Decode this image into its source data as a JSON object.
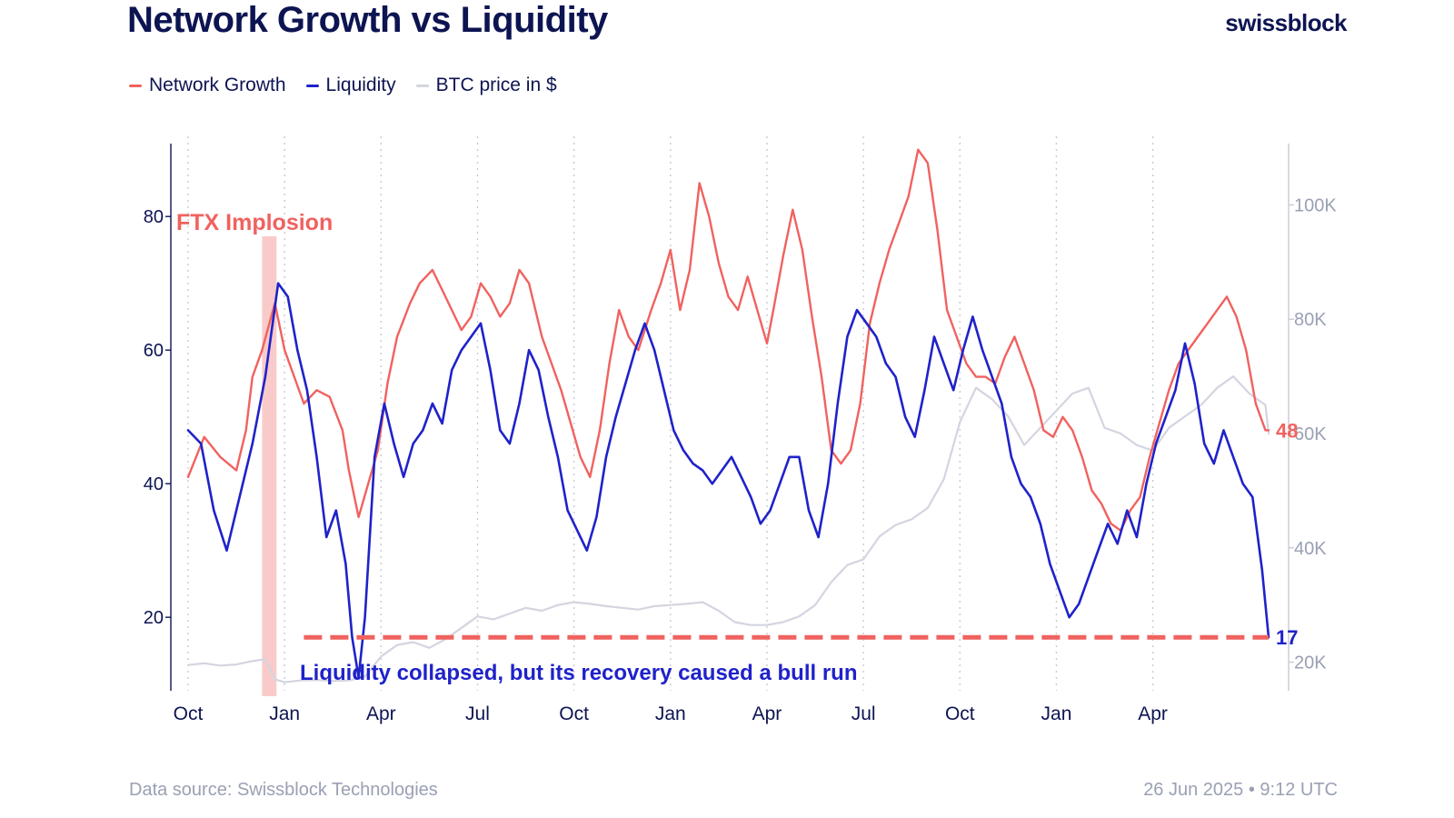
{
  "header": {
    "title": "Network Growth vs Liquidity",
    "brand": "swissblock"
  },
  "legend": [
    {
      "label": "Network Growth",
      "color": "#f0625f"
    },
    {
      "label": "Liquidity",
      "color": "#1f22c9"
    },
    {
      "label": "BTC price in $",
      "color": "#d3d5e0"
    }
  ],
  "footer": {
    "source": "Data source: Swissblock Technologies",
    "timestamp": "26 Jun 2025 • 9:12 UTC"
  },
  "chart_data": {
    "type": "line",
    "title": "Network Growth vs Liquidity",
    "x_months": [
      "Oct",
      "Jan",
      "Apr",
      "Jul",
      "Oct",
      "Jan",
      "Apr",
      "Jul",
      "Oct",
      "Jan",
      "Apr"
    ],
    "x_range": [
      0,
      33.6
    ],
    "left_axis": {
      "ticks": [
        20,
        40,
        60,
        80
      ],
      "range": [
        9,
        92
      ]
    },
    "right_axis": {
      "ticks": [
        "20K",
        "40K",
        "60K",
        "80K",
        "100K"
      ],
      "tick_values": [
        20000,
        40000,
        60000,
        80000,
        100000
      ],
      "range": [
        15000,
        112000
      ]
    },
    "series": [
      {
        "name": "Network Growth",
        "color": "#f0625f",
        "axis": "left",
        "points": [
          [
            0,
            41
          ],
          [
            0.5,
            47
          ],
          [
            1,
            44
          ],
          [
            1.5,
            42
          ],
          [
            1.8,
            48
          ],
          [
            2,
            56
          ],
          [
            2.3,
            60
          ],
          [
            2.7,
            67
          ],
          [
            3,
            60
          ],
          [
            3.3,
            56
          ],
          [
            3.6,
            52
          ],
          [
            4,
            54
          ],
          [
            4.4,
            53
          ],
          [
            4.8,
            48
          ],
          [
            5,
            42
          ],
          [
            5.3,
            35
          ],
          [
            5.6,
            40
          ],
          [
            5.9,
            45
          ],
          [
            6.2,
            55
          ],
          [
            6.5,
            62
          ],
          [
            6.9,
            67
          ],
          [
            7.2,
            70
          ],
          [
            7.6,
            72
          ],
          [
            7.9,
            69
          ],
          [
            8.2,
            66
          ],
          [
            8.5,
            63
          ],
          [
            8.8,
            65
          ],
          [
            9.1,
            70
          ],
          [
            9.4,
            68
          ],
          [
            9.7,
            65
          ],
          [
            10,
            67
          ],
          [
            10.3,
            72
          ],
          [
            10.6,
            70
          ],
          [
            11,
            62
          ],
          [
            11.3,
            58
          ],
          [
            11.6,
            54
          ],
          [
            11.9,
            49
          ],
          [
            12.2,
            44
          ],
          [
            12.5,
            41
          ],
          [
            12.8,
            48
          ],
          [
            13.1,
            58
          ],
          [
            13.4,
            66
          ],
          [
            13.7,
            62
          ],
          [
            14,
            60
          ],
          [
            14.4,
            66
          ],
          [
            14.7,
            70
          ],
          [
            15,
            75
          ],
          [
            15.3,
            66
          ],
          [
            15.6,
            72
          ],
          [
            15.9,
            85
          ],
          [
            16.2,
            80
          ],
          [
            16.5,
            73
          ],
          [
            16.8,
            68
          ],
          [
            17.1,
            66
          ],
          [
            17.4,
            71
          ],
          [
            17.7,
            66
          ],
          [
            18,
            61
          ],
          [
            18.2,
            66
          ],
          [
            18.5,
            74
          ],
          [
            18.8,
            81
          ],
          [
            19.1,
            75
          ],
          [
            19.4,
            65
          ],
          [
            19.7,
            56
          ],
          [
            20,
            45
          ],
          [
            20.3,
            43
          ],
          [
            20.6,
            45
          ],
          [
            20.9,
            52
          ],
          [
            21.2,
            64
          ],
          [
            21.5,
            70
          ],
          [
            21.8,
            75
          ],
          [
            22.1,
            79
          ],
          [
            22.4,
            83
          ],
          [
            22.7,
            90
          ],
          [
            23,
            88
          ],
          [
            23.3,
            78
          ],
          [
            23.6,
            66
          ],
          [
            23.9,
            62
          ],
          [
            24.2,
            58
          ],
          [
            24.5,
            56
          ],
          [
            24.8,
            56
          ],
          [
            25.1,
            55
          ],
          [
            25.4,
            59
          ],
          [
            25.7,
            62
          ],
          [
            26,
            58
          ],
          [
            26.3,
            54
          ],
          [
            26.6,
            48
          ],
          [
            26.9,
            47
          ],
          [
            27.2,
            50
          ],
          [
            27.5,
            48
          ],
          [
            27.8,
            44
          ],
          [
            28.1,
            39
          ],
          [
            28.4,
            37
          ],
          [
            28.7,
            34
          ],
          [
            29,
            33
          ],
          [
            29.3,
            36
          ],
          [
            29.6,
            38
          ],
          [
            29.9,
            44
          ],
          [
            30.2,
            49
          ],
          [
            30.5,
            54
          ],
          [
            30.8,
            58
          ],
          [
            31.1,
            60
          ],
          [
            31.4,
            62
          ],
          [
            31.7,
            64
          ],
          [
            32,
            66
          ],
          [
            32.3,
            68
          ],
          [
            32.6,
            65
          ],
          [
            32.9,
            60
          ],
          [
            33.2,
            52
          ],
          [
            33.5,
            48
          ],
          [
            33.6,
            48
          ]
        ]
      },
      {
        "name": "Liquidity",
        "color": "#1f22c9",
        "axis": "left",
        "points": [
          [
            0,
            48
          ],
          [
            0.4,
            46
          ],
          [
            0.8,
            36
          ],
          [
            1.2,
            30
          ],
          [
            1.6,
            38
          ],
          [
            2,
            46
          ],
          [
            2.4,
            56
          ],
          [
            2.8,
            70
          ],
          [
            3.1,
            68
          ],
          [
            3.4,
            60
          ],
          [
            3.7,
            54
          ],
          [
            4,
            44
          ],
          [
            4.3,
            32
          ],
          [
            4.6,
            36
          ],
          [
            4.9,
            28
          ],
          [
            5.1,
            17
          ],
          [
            5.3,
            11
          ],
          [
            5.5,
            20
          ],
          [
            5.8,
            44
          ],
          [
            6.1,
            52
          ],
          [
            6.4,
            46
          ],
          [
            6.7,
            41
          ],
          [
            7,
            46
          ],
          [
            7.3,
            48
          ],
          [
            7.6,
            52
          ],
          [
            7.9,
            49
          ],
          [
            8.2,
            57
          ],
          [
            8.5,
            60
          ],
          [
            8.8,
            62
          ],
          [
            9.1,
            64
          ],
          [
            9.4,
            57
          ],
          [
            9.7,
            48
          ],
          [
            10,
            46
          ],
          [
            10.3,
            52
          ],
          [
            10.6,
            60
          ],
          [
            10.9,
            57
          ],
          [
            11.2,
            50
          ],
          [
            11.5,
            44
          ],
          [
            11.8,
            36
          ],
          [
            12.1,
            33
          ],
          [
            12.4,
            30
          ],
          [
            12.7,
            35
          ],
          [
            13,
            44
          ],
          [
            13.3,
            50
          ],
          [
            13.6,
            55
          ],
          [
            13.9,
            60
          ],
          [
            14.2,
            64
          ],
          [
            14.5,
            60
          ],
          [
            14.8,
            54
          ],
          [
            15.1,
            48
          ],
          [
            15.4,
            45
          ],
          [
            15.7,
            43
          ],
          [
            16,
            42
          ],
          [
            16.3,
            40
          ],
          [
            16.6,
            42
          ],
          [
            16.9,
            44
          ],
          [
            17.2,
            41
          ],
          [
            17.5,
            38
          ],
          [
            17.8,
            34
          ],
          [
            18.1,
            36
          ],
          [
            18.4,
            40
          ],
          [
            18.7,
            44
          ],
          [
            19,
            44
          ],
          [
            19.3,
            36
          ],
          [
            19.6,
            32
          ],
          [
            19.9,
            40
          ],
          [
            20.2,
            52
          ],
          [
            20.5,
            62
          ],
          [
            20.8,
            66
          ],
          [
            21.1,
            64
          ],
          [
            21.4,
            62
          ],
          [
            21.7,
            58
          ],
          [
            22,
            56
          ],
          [
            22.3,
            50
          ],
          [
            22.6,
            47
          ],
          [
            22.9,
            54
          ],
          [
            23.2,
            62
          ],
          [
            23.5,
            58
          ],
          [
            23.8,
            54
          ],
          [
            24.1,
            60
          ],
          [
            24.4,
            65
          ],
          [
            24.7,
            60
          ],
          [
            25,
            56
          ],
          [
            25.3,
            52
          ],
          [
            25.6,
            44
          ],
          [
            25.9,
            40
          ],
          [
            26.2,
            38
          ],
          [
            26.5,
            34
          ],
          [
            26.8,
            28
          ],
          [
            27.1,
            24
          ],
          [
            27.4,
            20
          ],
          [
            27.7,
            22
          ],
          [
            28,
            26
          ],
          [
            28.3,
            30
          ],
          [
            28.6,
            34
          ],
          [
            28.9,
            31
          ],
          [
            29.2,
            36
          ],
          [
            29.5,
            32
          ],
          [
            29.8,
            40
          ],
          [
            30.1,
            46
          ],
          [
            30.4,
            50
          ],
          [
            30.7,
            54
          ],
          [
            31,
            61
          ],
          [
            31.3,
            55
          ],
          [
            31.6,
            46
          ],
          [
            31.9,
            43
          ],
          [
            32.2,
            48
          ],
          [
            32.5,
            44
          ],
          [
            32.8,
            40
          ],
          [
            33.1,
            38
          ],
          [
            33.4,
            27
          ],
          [
            33.6,
            17
          ]
        ]
      },
      {
        "name": "BTC price in $",
        "color": "#d3d5e0",
        "axis": "right",
        "points": [
          [
            0,
            19500
          ],
          [
            0.5,
            19800
          ],
          [
            1,
            19400
          ],
          [
            1.5,
            19600
          ],
          [
            2,
            20200
          ],
          [
            2.4,
            20500
          ],
          [
            2.7,
            17000
          ],
          [
            3,
            16500
          ],
          [
            3.5,
            16800
          ],
          [
            4,
            16900
          ],
          [
            4.5,
            16700
          ],
          [
            5,
            16800
          ],
          [
            5.5,
            17500
          ],
          [
            6,
            21000
          ],
          [
            6.5,
            23000
          ],
          [
            7,
            23500
          ],
          [
            7.5,
            22500
          ],
          [
            8,
            24000
          ],
          [
            8.5,
            26000
          ],
          [
            9,
            28000
          ],
          [
            9.5,
            27500
          ],
          [
            10,
            28500
          ],
          [
            10.5,
            29500
          ],
          [
            11,
            29000
          ],
          [
            11.5,
            30000
          ],
          [
            12,
            30500
          ],
          [
            12.5,
            30200
          ],
          [
            13,
            29800
          ],
          [
            13.5,
            29500
          ],
          [
            14,
            29200
          ],
          [
            14.5,
            29800
          ],
          [
            15,
            30000
          ],
          [
            15.5,
            30200
          ],
          [
            16,
            30500
          ],
          [
            16.5,
            29000
          ],
          [
            17,
            27000
          ],
          [
            17.5,
            26500
          ],
          [
            18,
            26500
          ],
          [
            18.5,
            27000
          ],
          [
            19,
            28000
          ],
          [
            19.5,
            30000
          ],
          [
            20,
            34000
          ],
          [
            20.5,
            37000
          ],
          [
            21,
            38000
          ],
          [
            21.5,
            42000
          ],
          [
            22,
            44000
          ],
          [
            22.5,
            45000
          ],
          [
            23,
            47000
          ],
          [
            23.5,
            52000
          ],
          [
            24,
            62000
          ],
          [
            24.5,
            68000
          ],
          [
            25,
            66000
          ],
          [
            25.5,
            63000
          ],
          [
            26,
            58000
          ],
          [
            26.5,
            61000
          ],
          [
            27,
            64000
          ],
          [
            27.5,
            67000
          ],
          [
            28,
            68000
          ],
          [
            28.5,
            61000
          ],
          [
            29,
            60000
          ],
          [
            29.5,
            58000
          ],
          [
            30,
            57000
          ],
          [
            30.5,
            61000
          ],
          [
            31,
            63000
          ],
          [
            31.5,
            65000
          ],
          [
            32,
            68000
          ],
          [
            32.5,
            70000
          ],
          [
            33,
            67000
          ],
          [
            33.5,
            65000
          ],
          [
            33.6,
            60000
          ]
        ]
      }
    ],
    "annotations": [
      {
        "text": "FTX Implosion",
        "color": "#f0625f"
      },
      {
        "text": "Liquidity collapsed, but its recovery caused a bull run",
        "color": "#1f22c9"
      }
    ],
    "reference_line": {
      "value": 17,
      "color": "#f0625f",
      "style": "dashed"
    },
    "end_labels": [
      {
        "series": "Network Growth",
        "value": 48,
        "color": "#f0625f"
      },
      {
        "series": "Liquidity",
        "value": 17,
        "color": "#1f22c9"
      }
    ],
    "highlight_band": {
      "label": "FTX Implosion",
      "x_start": 2.3,
      "x_end": 2.75
    }
  }
}
